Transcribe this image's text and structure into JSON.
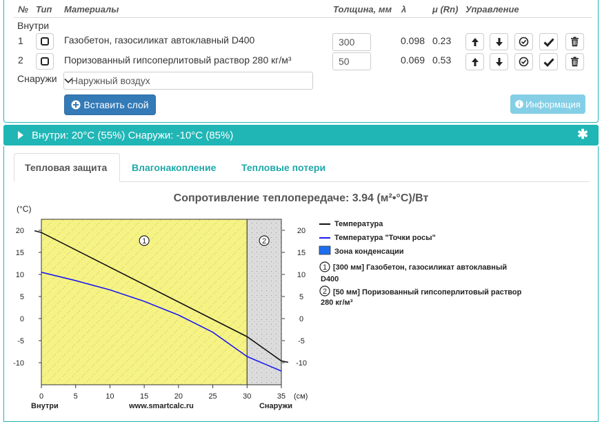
{
  "table": {
    "headers": {
      "num": "№",
      "type": "Тип",
      "materials": "Материалы",
      "thickness": "Толщина, мм",
      "lambda": "λ",
      "mu": "μ (Rn)",
      "control": "Управление"
    },
    "inside_label": "Внутри",
    "outside_label": "Снаружи",
    "rows": [
      {
        "num": "1",
        "name": "Газобетон, газосиликат автоклавный D400",
        "thickness": "300",
        "lambda": "0.098",
        "mu": "0.23"
      },
      {
        "num": "2",
        "name": "Поризованный гипсоперлитовый раствор 280 кг/м³",
        "thickness": "50",
        "lambda": "0.069",
        "mu": "0.53"
      }
    ],
    "outside_select": "Наружный воздух",
    "insert_button": "Вставить слой",
    "info_button": "Информация"
  },
  "conditions_bar": "Внутри: 20°C (55%) Снаружи: -10°C (85%)",
  "tabs": [
    "Тепловая защита",
    "Влагонакопление",
    "Тепловые потери"
  ],
  "chart_title": "Сопротивление теплопередаче: 3.94 (м²•°C)/Вт",
  "chart_data": {
    "type": "line",
    "ylabel": "(°C)",
    "xunit": "(см)",
    "xlim": [
      0,
      35
    ],
    "ylim": [
      -15,
      22.5
    ],
    "xticks": [
      0,
      5,
      10,
      15,
      20,
      25,
      30,
      35
    ],
    "yticks": [
      20,
      15,
      10,
      5,
      0,
      -5,
      -10
    ],
    "x_left_label": "Внутри",
    "x_right_label": "Снаружи",
    "x_center_label": "www.smartcalc.ru",
    "layers": [
      {
        "from": 0,
        "to": 30,
        "number": "1"
      },
      {
        "from": 30,
        "to": 35,
        "number": "2"
      }
    ],
    "series": [
      {
        "name": "Температура",
        "color": "#111111",
        "x": [
          -1,
          0,
          30,
          35,
          36
        ],
        "y": [
          19.9,
          19.5,
          -4.1,
          -9.6,
          -9.9
        ]
      },
      {
        "name": "Температура \"Точки росы\"",
        "color": "#1a1aee",
        "x": [
          0,
          5,
          10,
          15,
          20,
          25,
          30,
          35
        ],
        "y": [
          10.5,
          8.6,
          6.5,
          3.9,
          0.8,
          -3.1,
          -8.6,
          -11.9
        ]
      }
    ],
    "legend": {
      "temperature": "Температура",
      "dew_point": "Температура \"Точки росы\"",
      "condensation": "Зона конденсации",
      "layer1": "[300 мм] Газобетон, газосиликат автоклавный D400",
      "layer2": "[50 мм] Поризованный гипсоперлитовый раствор 280 кг/м³"
    }
  },
  "colors": {
    "accent": "#21b6b6",
    "primary": "#337ab7",
    "info": "#5bc0de",
    "layer1_fill": "#f6f385",
    "layer2_fill": "#d9d9d9",
    "condensation": "#1e6ff0"
  }
}
